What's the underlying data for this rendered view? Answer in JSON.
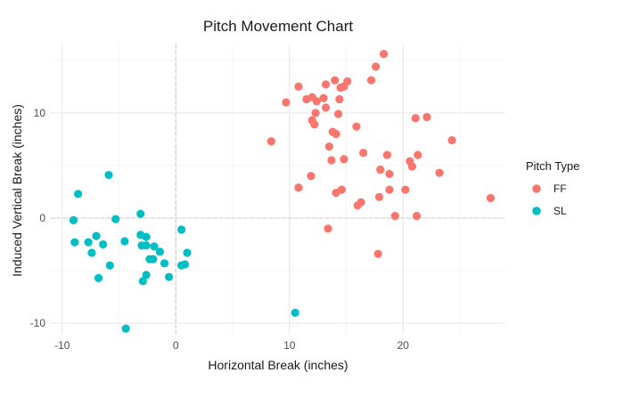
{
  "chart_data": {
    "type": "scatter",
    "title": "Pitch Movement Chart",
    "xlabel": "Horizontal Break (inches)",
    "ylabel": "Induced Vertical Break (inches)",
    "xlim": [
      -11,
      29
    ],
    "ylim": [
      -11,
      16.5
    ],
    "x_ticks": [
      -10,
      0,
      10,
      20
    ],
    "y_ticks": [
      -10,
      0,
      10
    ],
    "x_tick_labels": [
      "-10",
      "0",
      "10",
      "20"
    ],
    "y_tick_labels": [
      "-10",
      "0",
      "10"
    ],
    "grid": true,
    "reference_lines": {
      "x": 0,
      "y": 0,
      "style": "dashed"
    },
    "legend": {
      "title": "Pitch Type",
      "position": "right"
    },
    "series": [
      {
        "name": "FF",
        "color": "#F8766D",
        "points": [
          [
            18.3,
            15.6
          ],
          [
            17.6,
            14.4
          ],
          [
            14.0,
            13.1
          ],
          [
            17.2,
            13.1
          ],
          [
            15.1,
            13.0
          ],
          [
            13.2,
            12.7
          ],
          [
            10.8,
            12.5
          ],
          [
            14.5,
            12.4
          ],
          [
            14.8,
            12.5
          ],
          [
            12.0,
            11.5
          ],
          [
            11.5,
            11.3
          ],
          [
            12.4,
            11.1
          ],
          [
            13.0,
            11.4
          ],
          [
            14.4,
            11.3
          ],
          [
            9.7,
            11.0
          ],
          [
            13.2,
            10.5
          ],
          [
            12.3,
            10.0
          ],
          [
            14.3,
            9.9
          ],
          [
            21.1,
            9.5
          ],
          [
            22.1,
            9.6
          ],
          [
            12.0,
            9.3
          ],
          [
            12.2,
            8.9
          ],
          [
            15.9,
            8.7
          ],
          [
            13.8,
            8.2
          ],
          [
            14.1,
            8.0
          ],
          [
            8.4,
            7.3
          ],
          [
            24.3,
            7.4
          ],
          [
            13.5,
            6.8
          ],
          [
            16.5,
            6.2
          ],
          [
            18.6,
            6.0
          ],
          [
            21.3,
            6.0
          ],
          [
            13.7,
            5.5
          ],
          [
            14.8,
            5.6
          ],
          [
            20.6,
            5.4
          ],
          [
            20.8,
            4.9
          ],
          [
            18.0,
            4.6
          ],
          [
            18.8,
            4.2
          ],
          [
            23.2,
            4.3
          ],
          [
            11.9,
            4.0
          ],
          [
            10.8,
            2.9
          ],
          [
            14.1,
            2.4
          ],
          [
            14.6,
            2.7
          ],
          [
            18.8,
            2.7
          ],
          [
            20.2,
            2.7
          ],
          [
            17.9,
            2.0
          ],
          [
            16.0,
            1.2
          ],
          [
            16.3,
            1.5
          ],
          [
            27.7,
            1.9
          ],
          [
            19.3,
            0.2
          ],
          [
            21.2,
            0.2
          ],
          [
            13.4,
            -1.0
          ],
          [
            17.8,
            -3.4
          ]
        ]
      },
      {
        "name": "SL",
        "color": "#00BFC4",
        "points": [
          [
            -5.9,
            4.1
          ],
          [
            -8.6,
            2.3
          ],
          [
            -9.0,
            -0.2
          ],
          [
            -5.3,
            -0.1
          ],
          [
            -3.1,
            0.4
          ],
          [
            0.5,
            -1.1
          ],
          [
            -7.0,
            -1.7
          ],
          [
            -3.1,
            -1.6
          ],
          [
            -2.6,
            -1.8
          ],
          [
            -8.9,
            -2.3
          ],
          [
            -7.7,
            -2.3
          ],
          [
            -6.4,
            -2.5
          ],
          [
            -4.5,
            -2.2
          ],
          [
            -3.0,
            -2.6
          ],
          [
            -2.6,
            -2.6
          ],
          [
            -1.9,
            -2.7
          ],
          [
            -7.4,
            -3.3
          ],
          [
            -1.4,
            -3.2
          ],
          [
            1.0,
            -3.3
          ],
          [
            -2.3,
            -3.9
          ],
          [
            -2.0,
            -3.9
          ],
          [
            -1.0,
            -4.3
          ],
          [
            0.5,
            -4.5
          ],
          [
            0.8,
            -4.4
          ],
          [
            -5.8,
            -4.5
          ],
          [
            -2.6,
            -5.4
          ],
          [
            -0.6,
            -5.6
          ],
          [
            -6.8,
            -5.7
          ],
          [
            -2.9,
            -6.0
          ],
          [
            10.5,
            -9.0
          ],
          [
            -4.4,
            -10.5
          ]
        ]
      }
    ]
  }
}
